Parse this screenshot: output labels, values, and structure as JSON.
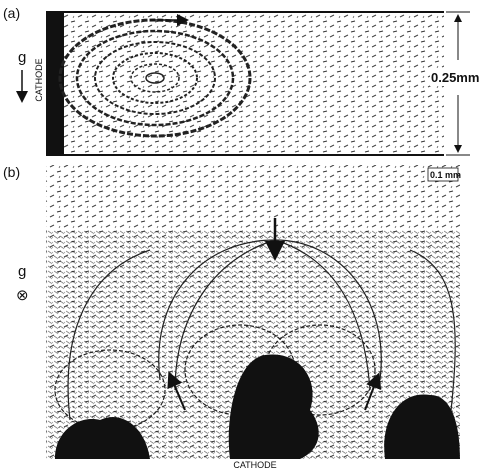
{
  "panel_a": {
    "label": "(a)",
    "gravity_label": "g",
    "electrode_label": "CATHODE",
    "dimension_label": "0.25mm"
  },
  "panel_b": {
    "label": "(b)",
    "gravity_label": "g",
    "gravity_symbol": "⊗",
    "scale_label": "0.1 mm",
    "electrode_label": "CATHODE"
  }
}
